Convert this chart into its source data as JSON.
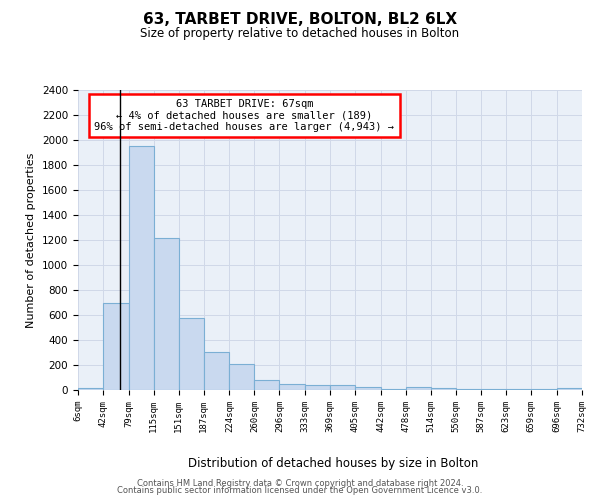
{
  "title": "63, TARBET DRIVE, BOLTON, BL2 6LX",
  "subtitle": "Size of property relative to detached houses in Bolton",
  "xlabel": "Distribution of detached houses by size in Bolton",
  "ylabel": "Number of detached properties",
  "annotation_title": "63 TARBET DRIVE: 67sqm",
  "annotation_line2": "← 4% of detached houses are smaller (189)",
  "annotation_line3": "96% of semi-detached houses are larger (4,943) →",
  "property_size_sqm": 67,
  "bin_edges": [
    6,
    42,
    79,
    115,
    151,
    187,
    224,
    260,
    296,
    333,
    369,
    405,
    442,
    478,
    514,
    550,
    587,
    623,
    659,
    696,
    732
  ],
  "bar_heights": [
    15,
    700,
    1950,
    1220,
    575,
    305,
    205,
    80,
    45,
    38,
    38,
    28,
    10,
    28,
    20,
    5,
    5,
    5,
    5,
    18
  ],
  "bar_color": "#c9d9ef",
  "bar_edge_color": "#7bafd4",
  "annotation_box_color": "white",
  "annotation_box_edge_color": "red",
  "property_line_color": "black",
  "grid_color": "#d0d8e8",
  "background_color": "#eaf0f8",
  "ylim": [
    0,
    2400
  ],
  "yticks": [
    0,
    200,
    400,
    600,
    800,
    1000,
    1200,
    1400,
    1600,
    1800,
    2000,
    2200,
    2400
  ],
  "footer_line1": "Contains HM Land Registry data © Crown copyright and database right 2024.",
  "footer_line2": "Contains public sector information licensed under the Open Government Licence v3.0."
}
